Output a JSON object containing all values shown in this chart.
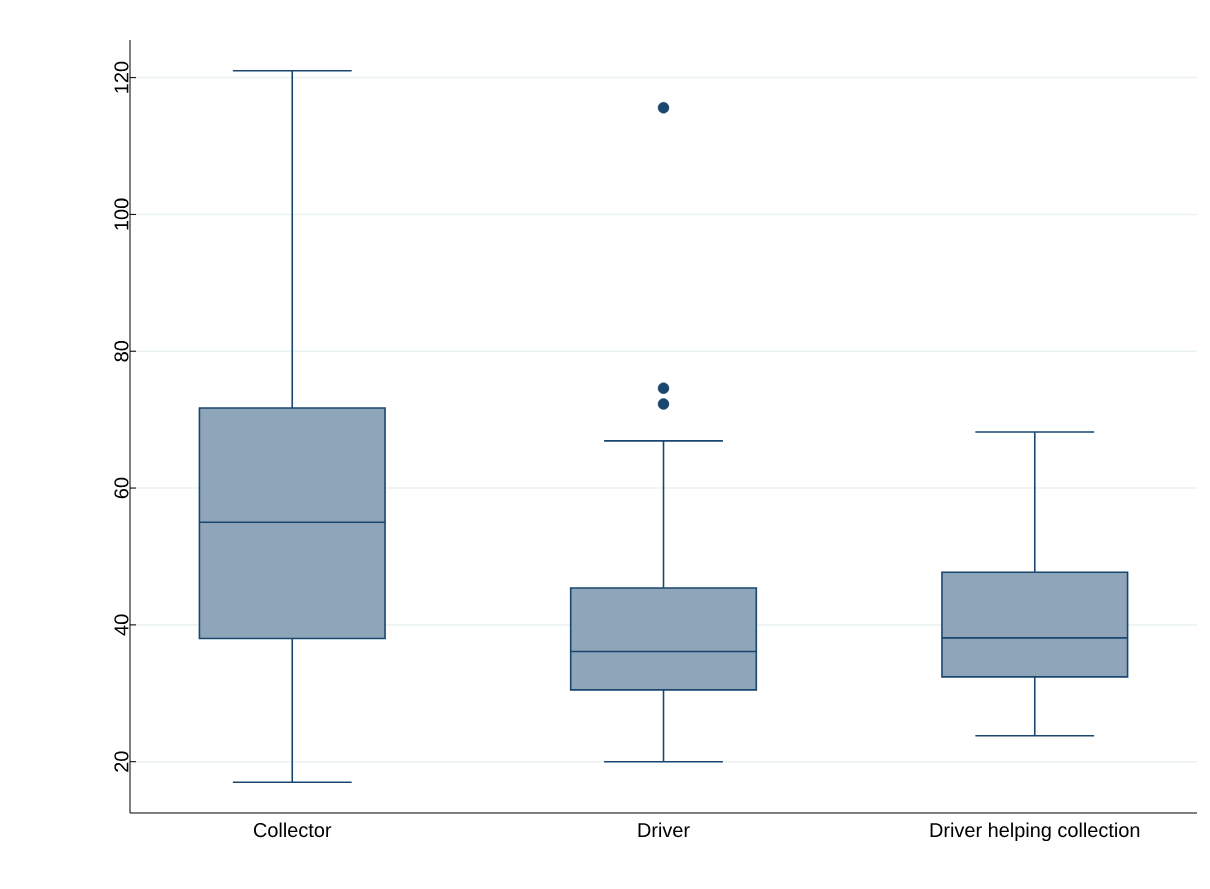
{
  "chart_data": {
    "type": "box",
    "categories": [
      "Collector",
      "Driver",
      "Driver helping collection"
    ],
    "boxes": [
      {
        "low": 17,
        "q1": 38,
        "median": 55,
        "q3": 71.7,
        "high": 121
      },
      {
        "low": 20,
        "q1": 30.5,
        "median": 36.1,
        "q3": 45.4,
        "high": 66.9,
        "outliers": [
          72.3,
          74.6,
          115.6
        ]
      },
      {
        "low": 23.8,
        "q1": 32.4,
        "median": 38.1,
        "q3": 47.7,
        "high": 68.2
      }
    ],
    "color": "#8fa5ba",
    "ylim": [
      12.5,
      125.5
    ],
    "yticks": [
      20,
      40,
      60,
      80,
      100,
      120
    ],
    "grid": "y"
  }
}
